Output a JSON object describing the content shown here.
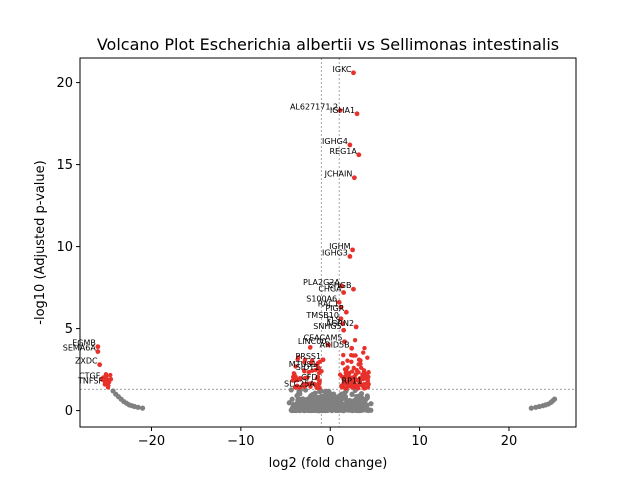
{
  "chart_data": {
    "type": "scatter",
    "title": "Volcano Plot Escherichia albertii vs Sellimonas intestinalis",
    "xlabel": "log2 (fold change)",
    "ylabel": "-log10 (Adjusted p-value)",
    "xlim": [
      -28,
      27.5
    ],
    "ylim": [
      -1.0,
      21.5
    ],
    "xticks": [
      -20,
      -10,
      0,
      10,
      20
    ],
    "yticks": [
      0,
      5,
      10,
      15,
      20
    ],
    "threshold_lines": {
      "x": [
        -1,
        1
      ],
      "y": 1.3
    },
    "colors": {
      "significant": "#e8312a",
      "nonsignificant": "#808080",
      "threshold": "#808080"
    },
    "significant_points": [
      {
        "label": "IGKC",
        "x": 2.6,
        "y": 20.6
      },
      {
        "label": "AL627171.2",
        "x": 1.1,
        "y": 18.3
      },
      {
        "label": "IGHA1",
        "x": 3.0,
        "y": 18.1
      },
      {
        "label": "IGHG4",
        "x": 2.2,
        "y": 16.2
      },
      {
        "label": "REG1A",
        "x": 3.2,
        "y": 15.6
      },
      {
        "label": "JCHAIN",
        "x": 2.7,
        "y": 14.2
      },
      {
        "label": "IGHM",
        "x": 2.5,
        "y": 9.8
      },
      {
        "label": "IGHG3",
        "x": 2.2,
        "y": 9.4
      },
      {
        "label": "PLA2G2A",
        "x": 1.3,
        "y": 7.6
      },
      {
        "label": "CHGB",
        "x": 2.6,
        "y": 7.4
      },
      {
        "label": "CHGA",
        "x": 1.5,
        "y": 7.2
      },
      {
        "label": "S100A6",
        "x": 1.0,
        "y": 6.6
      },
      {
        "label": "RAC1",
        "x": 1.2,
        "y": 6.3
      },
      {
        "label": "PIGR",
        "x": 1.8,
        "y": 6.0
      },
      {
        "label": "TMSB10",
        "x": 1.2,
        "y": 5.6
      },
      {
        "label": "FLS",
        "x": 1.4,
        "y": 5.3
      },
      {
        "label": "AGRN2",
        "x": 2.9,
        "y": 5.1
      },
      {
        "label": "SNHG5",
        "x": 1.5,
        "y": 4.9
      },
      {
        "label": "CEACAM5",
        "x": 1.6,
        "y": 4.2
      },
      {
        "label": "LINC00",
        "x": -0.2,
        "y": 4.0
      },
      {
        "label": "ARID5B",
        "x": 2.4,
        "y": 3.8
      },
      {
        "label": "PRSS1",
        "x": -0.8,
        "y": 3.1
      },
      {
        "label": "MTUS1",
        "x": -1.3,
        "y": 2.6
      },
      {
        "label": "SIDT1",
        "x": -1.0,
        "y": 2.4
      },
      {
        "label": "CFD",
        "x": -1.2,
        "y": 1.8
      },
      {
        "label": "SLC25A",
        "x": -1.5,
        "y": 1.4
      },
      {
        "label": "RP11",
        "x": 3.8,
        "y": 1.6
      },
      {
        "label": "EGMB",
        "x": -26.0,
        "y": 3.9
      },
      {
        "label": "SEMA6A",
        "x": -26.0,
        "y": 3.6
      },
      {
        "label": "ZXDC",
        "x": -25.8,
        "y": 2.8
      },
      {
        "label": "CTGF",
        "x": -25.5,
        "y": 1.9
      },
      {
        "label": "TNFSF",
        "x": -25.2,
        "y": 1.6
      }
    ],
    "nonsignificant_points": [
      {
        "x": -24.3,
        "y": 1.2
      },
      {
        "x": -24.0,
        "y": 1.0
      },
      {
        "x": -23.7,
        "y": 0.85
      },
      {
        "x": -23.4,
        "y": 0.7
      },
      {
        "x": -23.1,
        "y": 0.55
      },
      {
        "x": -22.8,
        "y": 0.45
      },
      {
        "x": -22.5,
        "y": 0.35
      },
      {
        "x": -22.2,
        "y": 0.3
      },
      {
        "x": -21.9,
        "y": 0.25
      },
      {
        "x": -21.5,
        "y": 0.2
      },
      {
        "x": -21.0,
        "y": 0.15
      },
      {
        "x": 22.5,
        "y": 0.15
      },
      {
        "x": 23.0,
        "y": 0.2
      },
      {
        "x": 23.4,
        "y": 0.25
      },
      {
        "x": 23.8,
        "y": 0.3
      },
      {
        "x": 24.1,
        "y": 0.35
      },
      {
        "x": 24.4,
        "y": 0.4
      },
      {
        "x": 24.7,
        "y": 0.5
      },
      {
        "x": 24.9,
        "y": 0.6
      },
      {
        "x": 25.1,
        "y": 0.7
      }
    ]
  }
}
